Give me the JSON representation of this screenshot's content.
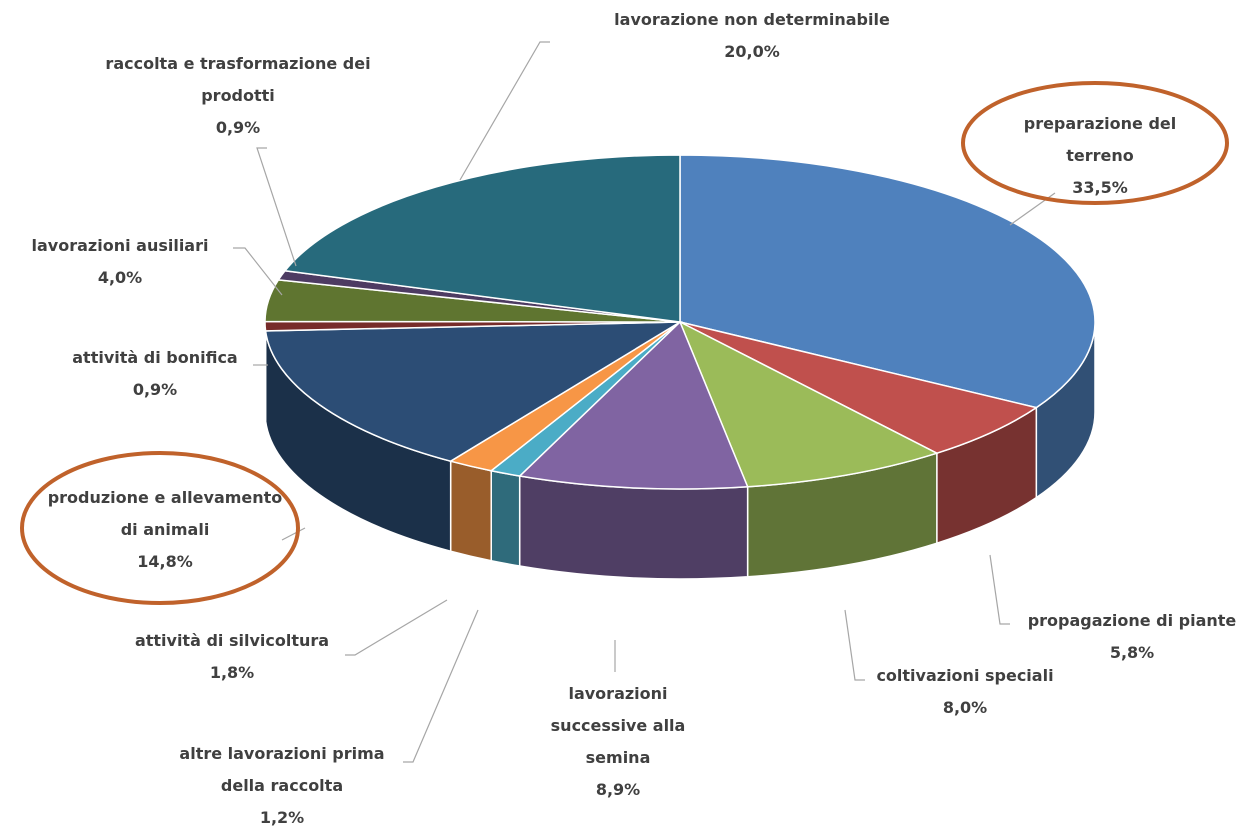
{
  "chart_data": {
    "type": "pie",
    "categories": [
      "preparazione del terreno",
      "propagazione di piante",
      "coltivazioni speciali",
      "lavorazioni successive alla semina",
      "altre lavorazioni prima della raccolta",
      "attività di silvicoltura",
      "produzione e allevamento di animali",
      "attività di bonifica",
      "lavorazioni ausiliari",
      "raccolta e trasformazione dei prodotti",
      "lavorazione non determinabile"
    ],
    "values": [
      33.5,
      5.8,
      8.0,
      8.9,
      1.2,
      1.8,
      14.8,
      0.9,
      4.0,
      0.9,
      20.0
    ],
    "value_labels": [
      "33,5%",
      "5,8%",
      "8,0%",
      "8,9%",
      "1,2%",
      "1,8%",
      "14,8%",
      "0,9%",
      "4,0%",
      "0,9%",
      "20,0%"
    ],
    "colors": [
      "#4f81bd",
      "#c0504d",
      "#9bbb59",
      "#8064a2",
      "#4bacc6",
      "#f79646",
      "#2c4d75",
      "#772c2a",
      "#5f7530",
      "#4d3b62",
      "#276a7c"
    ]
  }
}
